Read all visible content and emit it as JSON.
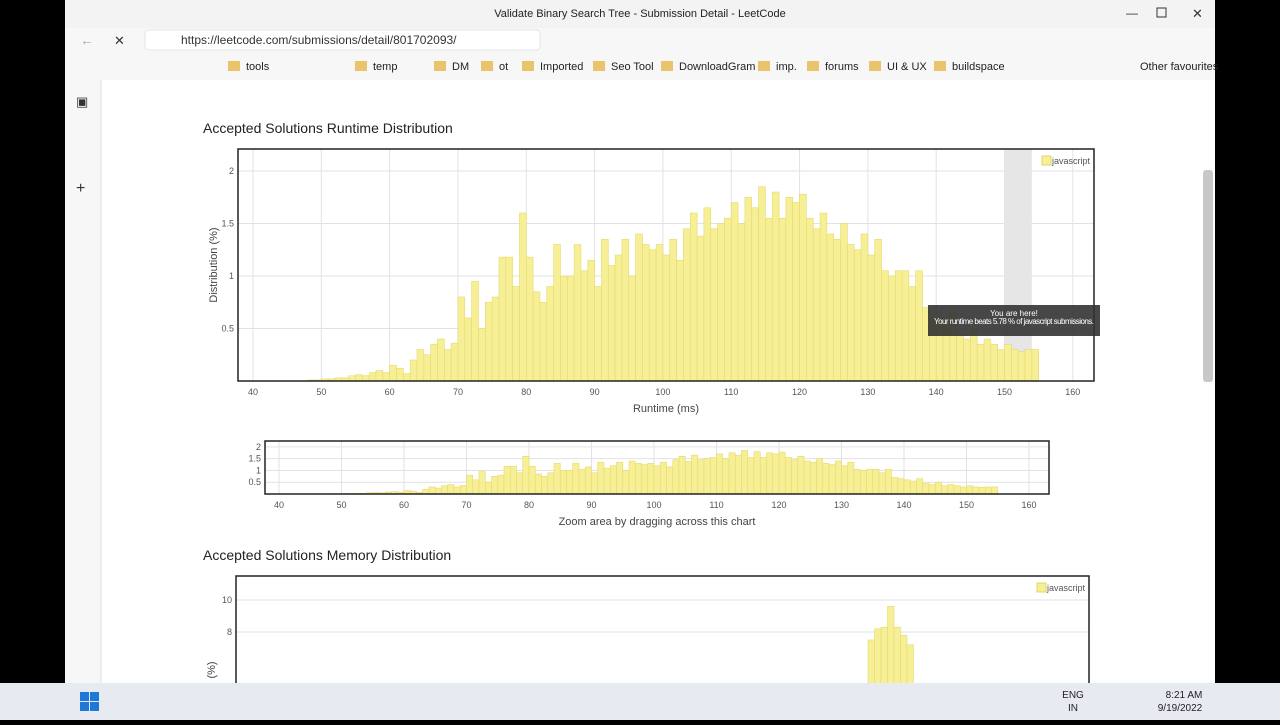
{
  "browser": {
    "tab_title": "Validate Binary Search Tree - Submission Detail - LeetCode",
    "url": "https://leetcode.com/submissions/detail/801702093/",
    "bookmarks": [
      "tools",
      "temp",
      "DM",
      "ot",
      "Imported",
      "Seo Tool",
      "DownloadGram",
      "imp.",
      "forums",
      "UI & UX",
      "buildspace"
    ],
    "other_favourites": "Other favourites"
  },
  "taskbar": {
    "lang": "ENG",
    "region": "IN",
    "time": "8:21 AM",
    "date": "9/19/2022"
  },
  "tooltip": {
    "title": "You are here!",
    "text": "Your runtime beats 5.78 % of javascript submissions."
  },
  "chart_data": [
    {
      "type": "histogram",
      "title": "Accepted Solutions Runtime Distribution",
      "xlabel": "Runtime (ms)",
      "ylabel": "Distribution (%)",
      "color": "#f7ef96",
      "legend": "top-right",
      "grid": true,
      "series": [
        {
          "name": "javascript"
        }
      ],
      "bins": [
        48,
        49,
        50,
        51,
        52,
        53,
        54,
        55,
        56,
        57,
        58,
        59,
        60,
        61,
        62,
        63,
        64,
        65,
        66,
        67,
        68,
        69,
        70,
        71,
        72,
        73,
        74,
        75,
        76,
        77,
        78,
        79,
        80,
        81,
        82,
        83,
        84,
        85,
        86,
        87,
        88,
        89,
        90,
        91,
        92,
        93,
        94,
        95,
        96,
        97,
        98,
        99,
        100,
        101,
        102,
        103,
        104,
        105,
        106,
        107,
        108,
        109,
        110,
        111,
        112,
        113,
        114,
        115,
        116,
        117,
        118,
        119,
        120,
        121,
        122,
        123,
        124,
        125,
        126,
        127,
        128,
        129,
        130,
        131,
        132,
        133,
        134,
        135,
        136,
        137,
        138,
        139,
        140,
        141,
        142,
        143,
        144,
        145,
        146,
        147,
        148,
        149,
        150,
        151,
        152,
        153,
        154,
        155
      ],
      "values": [
        0.01,
        0.01,
        0.02,
        0.02,
        0.03,
        0.03,
        0.05,
        0.06,
        0.05,
        0.08,
        0.1,
        0.08,
        0.15,
        0.12,
        0.07,
        0.2,
        0.3,
        0.25,
        0.35,
        0.4,
        0.3,
        0.36,
        0.8,
        0.6,
        0.95,
        0.5,
        0.75,
        0.8,
        1.18,
        1.18,
        0.9,
        1.6,
        1.18,
        0.85,
        0.75,
        0.9,
        1.3,
        1.0,
        1.0,
        1.3,
        1.05,
        1.15,
        0.9,
        1.35,
        1.1,
        1.2,
        1.35,
        1.0,
        1.4,
        1.3,
        1.25,
        1.3,
        1.2,
        1.35,
        1.15,
        1.45,
        1.6,
        1.38,
        1.65,
        1.45,
        1.5,
        1.55,
        1.7,
        1.5,
        1.75,
        1.65,
        1.85,
        1.55,
        1.8,
        1.55,
        1.75,
        1.7,
        1.78,
        1.55,
        1.45,
        1.6,
        1.4,
        1.35,
        1.5,
        1.3,
        1.25,
        1.4,
        1.2,
        1.35,
        1.05,
        1.0,
        1.05,
        1.05,
        0.9,
        1.05,
        0.7,
        0.65,
        0.6,
        0.55,
        0.65,
        0.45,
        0.4,
        0.5,
        0.35,
        0.4,
        0.35,
        0.3,
        0.35,
        0.3,
        0.28,
        0.3,
        0.3
      ],
      "highlight": [
        150,
        154
      ],
      "xlim": [
        37.8,
        163.1
      ],
      "ylim": [
        0,
        2.21
      ],
      "xticks": [
        40,
        50,
        60,
        70,
        80,
        90,
        100,
        110,
        120,
        130,
        140,
        150,
        160
      ],
      "yticks": [
        0.5,
        1.0,
        1.5,
        2.0
      ]
    },
    {
      "type": "overview",
      "xlabel": "Zoom area by dragging across this chart",
      "xlim": [
        37.76,
        163.2
      ],
      "ylim": [
        0,
        2.25
      ],
      "xticks": [
        40,
        50,
        60,
        70,
        80,
        90,
        100,
        110,
        120,
        130,
        140,
        150,
        160
      ],
      "yticks": [
        0.5,
        1.0,
        1.5,
        2.0
      ]
    },
    {
      "type": "bar",
      "title": "Accepted Solutions Memory Distribution",
      "ylabel": "(%)",
      "color": "#f7ef96",
      "legend": "top-right",
      "grid": true,
      "series": [
        {
          "name": "javascript"
        }
      ],
      "categories": [
        null,
        null,
        null,
        null,
        null,
        null,
        null
      ],
      "values": [
        7.5,
        8.2,
        8.3,
        9.6,
        8.3,
        7.8,
        7.2
      ],
      "ylim": [
        0,
        11.5
      ],
      "yticks": [
        8,
        10
      ]
    }
  ]
}
